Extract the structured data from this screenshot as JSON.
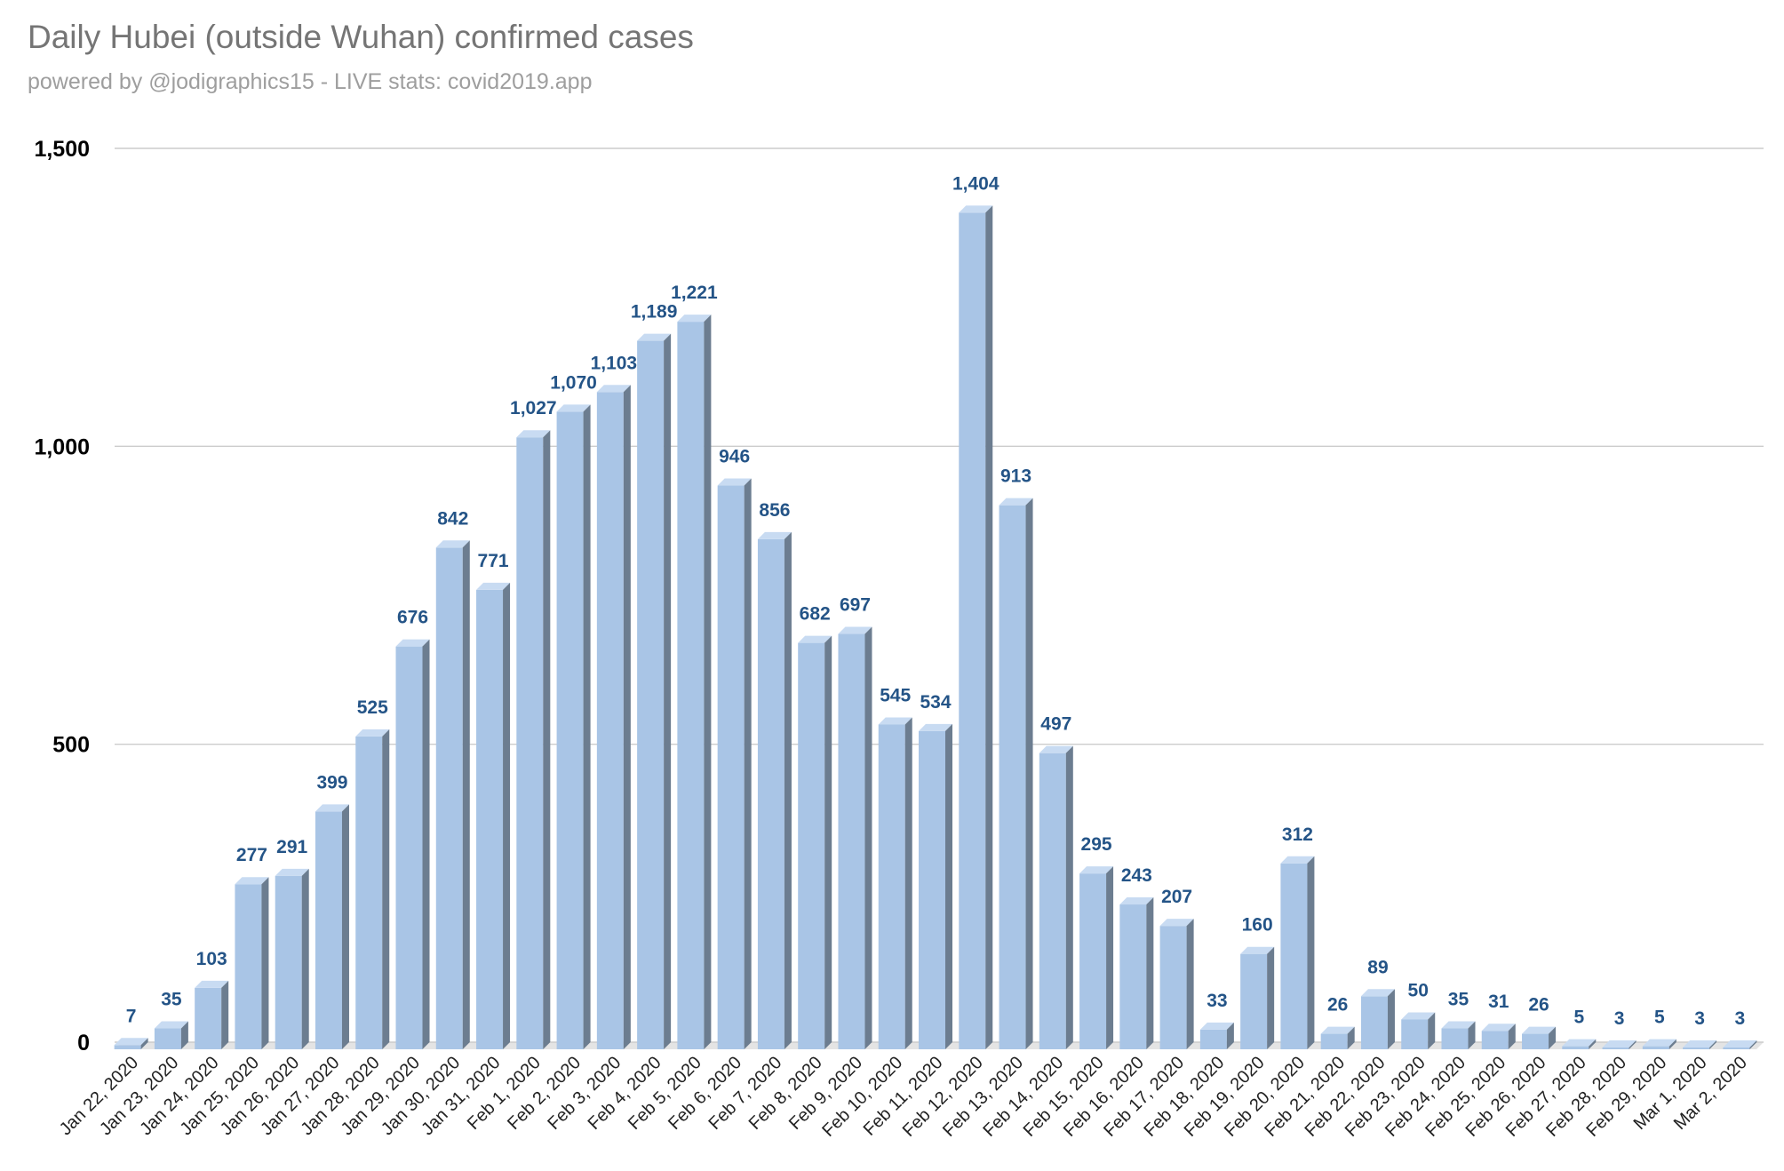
{
  "chart_data": {
    "type": "bar",
    "style": "3d",
    "title": "Daily Hubei (outside Wuhan) confirmed cases",
    "subtitle": "powered by @jodigraphics15 - LIVE stats: covid2019.app",
    "xlabel": "",
    "ylabel": "",
    "ylim": [
      0,
      1500
    ],
    "yticks": [
      0,
      500,
      1000,
      1500
    ],
    "ytick_labels": [
      "0",
      "500",
      "1,000",
      "1,500"
    ],
    "grid": true,
    "categories": [
      "Jan 22, 2020",
      "Jan 23, 2020",
      "Jan 24, 2020",
      "Jan 25, 2020",
      "Jan 26, 2020",
      "Jan 27, 2020",
      "Jan 28, 2020",
      "Jan 29, 2020",
      "Jan 30, 2020",
      "Jan 31, 2020",
      "Feb 1, 2020",
      "Feb 2, 2020",
      "Feb 3, 2020",
      "Feb 4, 2020",
      "Feb 5, 2020",
      "Feb 6, 2020",
      "Feb 7, 2020",
      "Feb 8, 2020",
      "Feb 9, 2020",
      "Feb 10, 2020",
      "Feb 11, 2020",
      "Feb 12, 2020",
      "Feb 13, 2020",
      "Feb 14, 2020",
      "Feb 15, 2020",
      "Feb 16, 2020",
      "Feb 17, 2020",
      "Feb 18, 2020",
      "Feb 19, 2020",
      "Feb 20, 2020",
      "Feb 21, 2020",
      "Feb 22, 2020",
      "Feb 23, 2020",
      "Feb 24, 2020",
      "Feb 25, 2020",
      "Feb 26, 2020",
      "Feb 27, 2020",
      "Feb 28, 2020",
      "Feb 29, 2020",
      "Mar 1, 2020",
      "Mar 2, 2020"
    ],
    "values": [
      7,
      35,
      103,
      277,
      291,
      399,
      525,
      676,
      842,
      771,
      1027,
      1070,
      1103,
      1189,
      1221,
      946,
      856,
      682,
      697,
      545,
      534,
      1404,
      913,
      497,
      295,
      243,
      207,
      33,
      160,
      312,
      26,
      89,
      50,
      35,
      31,
      26,
      5,
      3,
      5,
      3,
      3
    ],
    "data_labels": [
      "7",
      "35",
      "103",
      "277",
      "291",
      "399",
      "525",
      "676",
      "842",
      "771",
      "1,027",
      "1,070",
      "1,103",
      "1,189",
      "1,221",
      "946",
      "856",
      "682",
      "697",
      "545",
      "534",
      "1,404",
      "913",
      "497",
      "295",
      "243",
      "207",
      "33",
      "160",
      "312",
      "26",
      "89",
      "50",
      "35",
      "31",
      "26",
      "5",
      "3",
      "5",
      "3",
      "3"
    ],
    "colors": {
      "bar_front": "#a9c5e6",
      "bar_top": "#c8dbf2",
      "bar_side": "#6c7d90",
      "data_label": "#245487",
      "grid": "#cccccc",
      "floor": "#e4e4e4"
    }
  }
}
